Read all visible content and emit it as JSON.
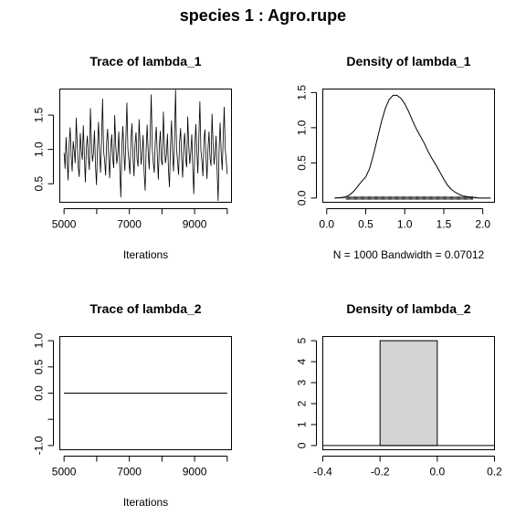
{
  "main_title": "species 1 : Agro.rupe",
  "chart_data": [
    {
      "type": "line",
      "title": "Trace of lambda_1",
      "xlabel": "Iterations",
      "ylabel": "",
      "xlim": [
        4870,
        10130
      ],
      "ylim": [
        0.23,
        1.88
      ],
      "xticks": [
        5000,
        7000,
        9000
      ],
      "xminor": [
        6000,
        8000,
        10000
      ],
      "yticks": [
        0.5,
        1.0,
        1.5
      ],
      "series": [
        {
          "x_start": 5000,
          "x_end": 10000,
          "y_min": 0.25,
          "y_max": 1.87,
          "center": 0.97,
          "values": [
            0.95,
            0.72,
            1.18,
            0.86,
            0.55,
            1.05,
            1.32,
            0.91,
            0.68,
            1.12,
            0.97,
            0.8,
            1.46,
            1.08,
            0.74,
            0.6,
            1.24,
            0.99,
            0.85,
            1.35,
            0.92,
            0.52,
            1.02,
            1.2,
            0.88,
            0.7,
            1.6,
            1.12,
            0.82,
            0.95,
            1.28,
            0.76,
            0.48,
            1.04,
            1.4,
            0.94,
            0.66,
            1.15,
            1.74,
            0.98,
            0.84,
            0.62,
            1.1,
            1.3,
            0.9,
            0.58,
            1.01,
            1.22,
            0.87,
            0.73,
            1.5,
            1.06,
            0.79,
            0.93,
            1.26,
            0.71,
            0.3,
            1.03,
            1.34,
            0.96,
            0.69,
            1.17,
            1.68,
            1.0,
            0.83,
            0.64,
            1.14,
            1.38,
            0.89,
            0.61,
            1.07,
            1.25,
            0.86,
            0.75,
            1.44,
            1.09,
            0.78,
            0.94,
            1.21,
            0.67,
            0.4,
            1.0,
            1.36,
            0.97,
            0.71,
            1.19,
            1.8,
            1.02,
            0.81,
            0.66,
            1.13,
            1.33,
            0.91,
            0.56,
            1.05,
            1.27,
            0.84,
            0.77,
            1.55,
            1.08,
            0.8,
            0.92,
            1.23,
            0.7,
            0.45,
            1.04,
            1.42,
            0.95,
            0.68,
            1.16,
            1.87,
            1.01,
            0.82,
            0.63,
            1.11,
            1.31,
            0.88,
            0.59,
            1.06,
            1.24,
            0.85,
            0.74,
            1.48,
            1.07,
            0.79,
            0.95,
            1.22,
            0.72,
            0.35,
            1.03,
            1.37,
            0.98,
            0.65,
            1.18,
            1.7,
            0.99,
            0.83,
            0.61,
            1.12,
            1.29,
            0.9,
            0.57,
            1.0,
            1.26,
            0.87,
            0.76,
            1.52,
            1.09,
            0.78,
            0.93,
            1.2,
            0.69,
            0.25,
            1.02,
            1.39,
            0.96,
            0.7,
            1.15,
            1.62,
            1.01,
            0.84,
            0.64
          ]
        }
      ]
    },
    {
      "type": "area",
      "title": "Density of lambda_1",
      "xlabel": "N = 1000   Bandwidth = 0.07012",
      "ylabel": "",
      "xlim": [
        -0.05,
        2.15
      ],
      "ylim": [
        -0.06,
        1.55
      ],
      "xticks": [
        0.0,
        0.5,
        1.0,
        1.5,
        2.0
      ],
      "yticks": [
        0.0,
        0.5,
        1.0,
        1.5
      ],
      "curve": {
        "x": [
          0.1,
          0.2,
          0.25,
          0.3,
          0.35,
          0.4,
          0.45,
          0.5,
          0.55,
          0.6,
          0.65,
          0.7,
          0.75,
          0.8,
          0.85,
          0.9,
          0.95,
          1.0,
          1.05,
          1.1,
          1.15,
          1.2,
          1.25,
          1.3,
          1.35,
          1.4,
          1.45,
          1.5,
          1.55,
          1.6,
          1.65,
          1.7,
          1.75,
          1.8,
          1.85,
          1.9,
          1.95,
          2.0,
          2.1
        ],
        "y": [
          0.0,
          0.01,
          0.02,
          0.05,
          0.1,
          0.17,
          0.24,
          0.3,
          0.42,
          0.62,
          0.85,
          1.08,
          1.27,
          1.4,
          1.46,
          1.46,
          1.42,
          1.34,
          1.23,
          1.1,
          0.98,
          0.88,
          0.78,
          0.66,
          0.56,
          0.47,
          0.37,
          0.27,
          0.18,
          0.12,
          0.08,
          0.05,
          0.03,
          0.02,
          0.01,
          0.01,
          0.0,
          0.0,
          0.0
        ]
      },
      "rug": {
        "from": 0.25,
        "to": 1.87
      }
    },
    {
      "type": "line",
      "title": "Trace of lambda_2",
      "xlabel": "Iterations",
      "ylabel": "",
      "xlim": [
        4870,
        10130
      ],
      "ylim": [
        -1.08,
        1.08
      ],
      "xticks": [
        5000,
        7000,
        9000
      ],
      "xminor": [
        6000,
        8000,
        10000
      ],
      "yticks": [
        -1.0,
        0.0,
        0.5,
        1.0
      ],
      "yminor": [
        -0.5
      ],
      "series": [
        {
          "x": [
            5000,
            10000
          ],
          "values": [
            0,
            0
          ]
        }
      ]
    },
    {
      "type": "bar",
      "title": "Density of lambda_2",
      "xlabel": "",
      "ylabel": "",
      "xlim": [
        -0.4,
        0.2
      ],
      "ylim": [
        -0.2,
        5.2
      ],
      "xticks": [
        -0.4,
        -0.2,
        0.0,
        0.2
      ],
      "yticks": [
        0,
        1,
        2,
        3,
        4,
        5
      ],
      "bars": [
        {
          "from": -0.2,
          "to": 0.0,
          "value": 5
        }
      ],
      "baseline": 0
    }
  ]
}
